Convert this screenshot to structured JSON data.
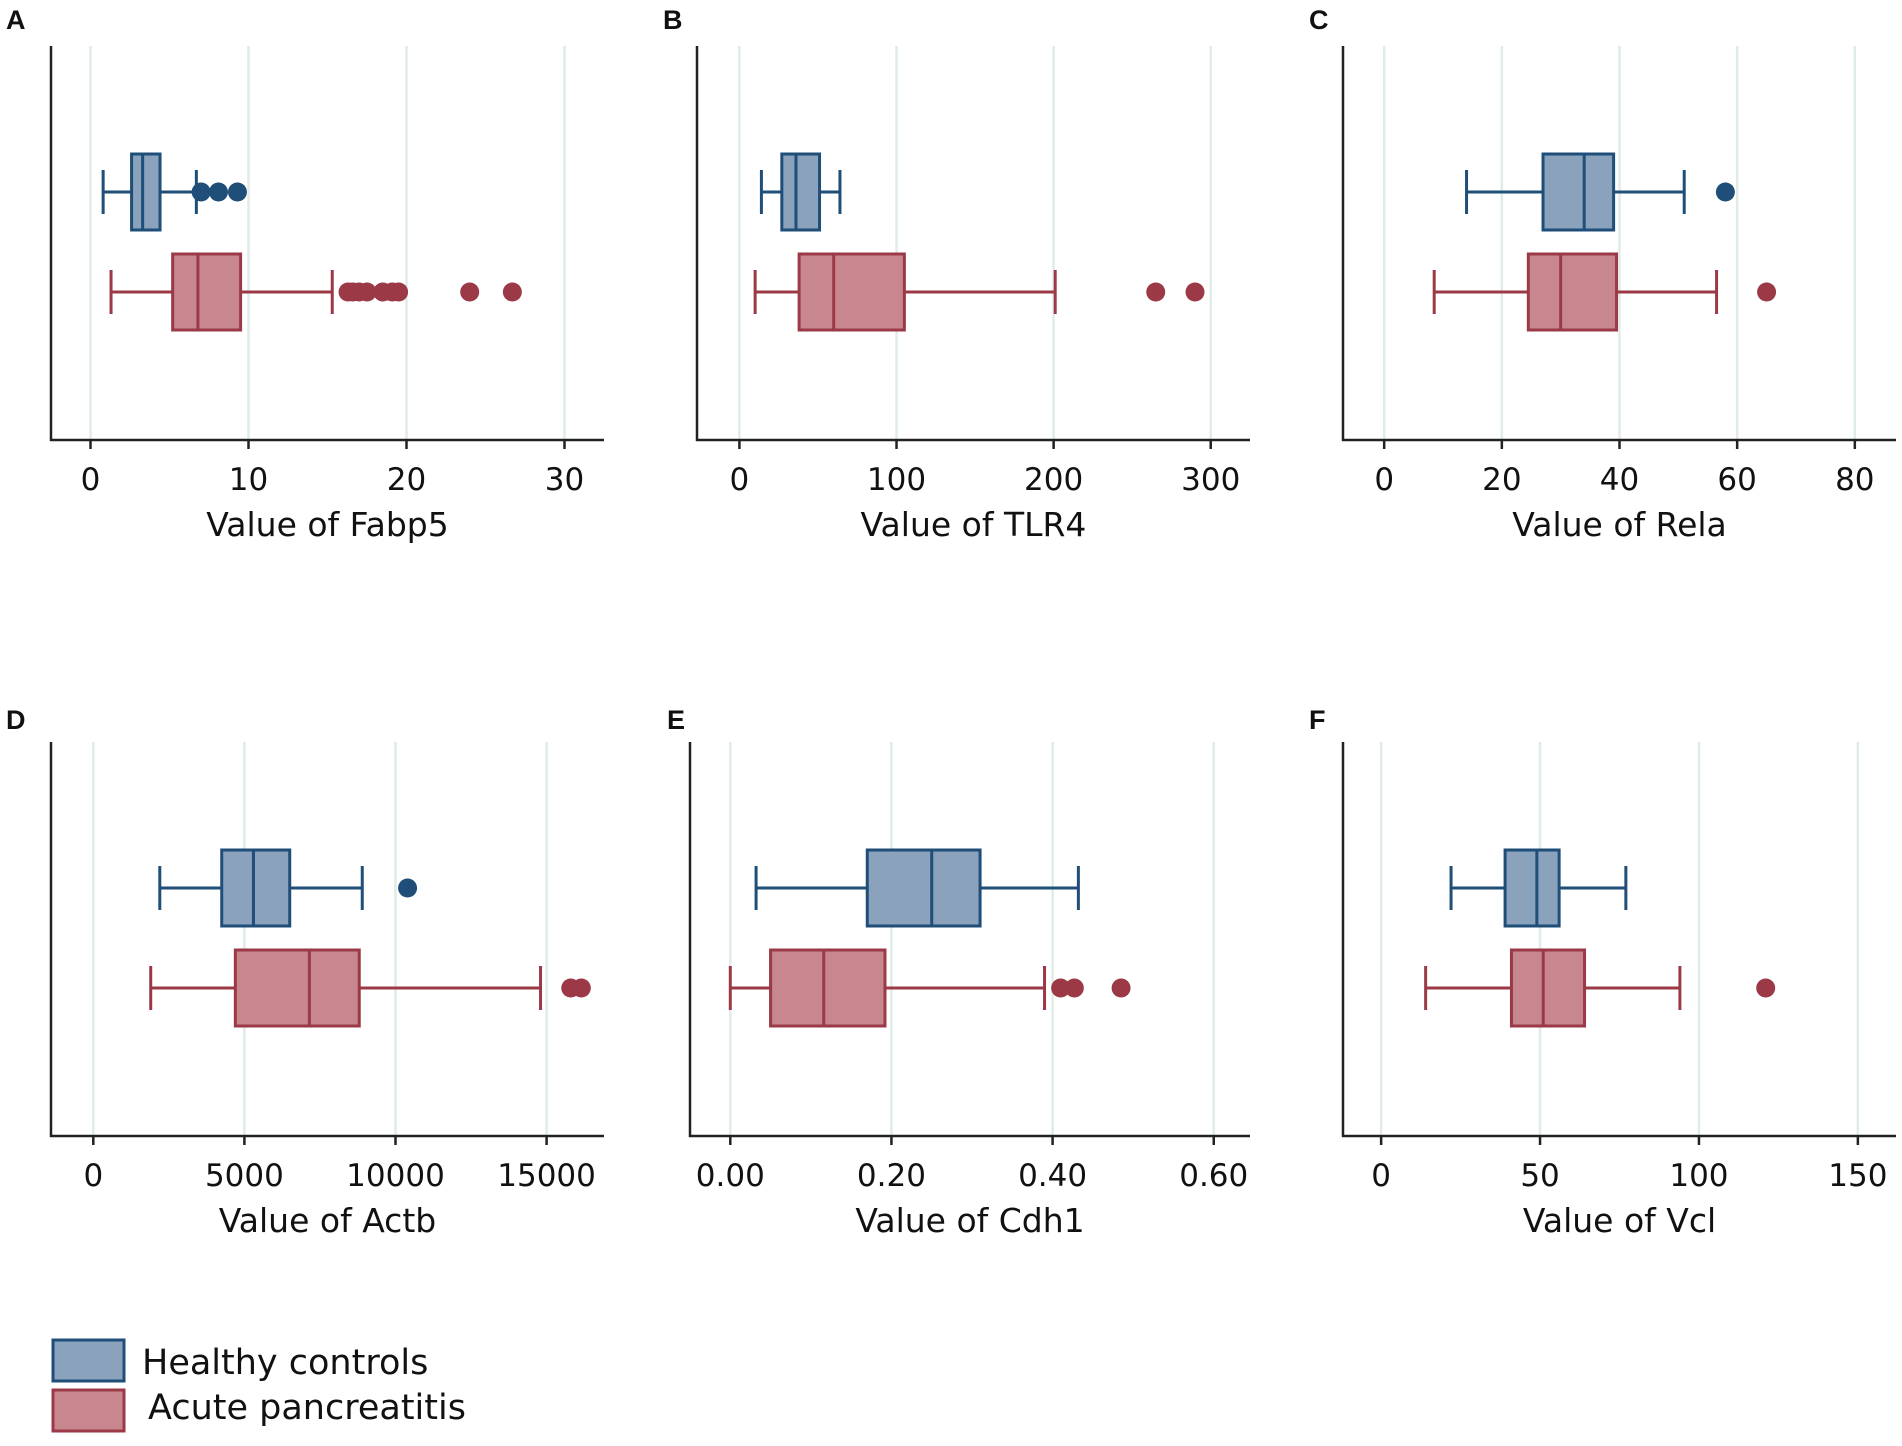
{
  "colors": {
    "healthy_stroke": "#1f4e79",
    "healthy_fill": "#8ba2bc",
    "ap_stroke": "#9b3a46",
    "ap_fill": "#c8878e",
    "grid": "#e1ebe8",
    "axis": "#222222"
  },
  "legend": {
    "items": [
      {
        "label": "Healthy controls",
        "series": "healthy"
      },
      {
        "label": "Acute pancreatitis",
        "series": "ap"
      }
    ]
  },
  "chart_data": [
    {
      "type": "box",
      "panel": "A",
      "xlabel": "Value of Fabp5",
      "xlim": [
        -2.5,
        32.5
      ],
      "ticks": [
        0,
        10,
        20,
        30
      ],
      "tick_labels": [
        "0",
        "10",
        "20",
        "30"
      ],
      "grid": true,
      "series": [
        {
          "name": "Healthy controls",
          "key": "healthy",
          "whisker_low": 0.8,
          "q1": 2.6,
          "median": 3.3,
          "q3": 4.4,
          "whisker_high": 6.7,
          "outliers": [
            7.0,
            8.1,
            9.3
          ]
        },
        {
          "name": "Acute pancreatitis",
          "key": "ap",
          "whisker_low": 1.3,
          "q1": 5.2,
          "median": 6.8,
          "q3": 9.5,
          "whisker_high": 15.3,
          "outliers": [
            16.3,
            16.6,
            17.0,
            17.5,
            18.5,
            19.1,
            19.5,
            24.0,
            26.7
          ]
        }
      ]
    },
    {
      "type": "box",
      "panel": "B",
      "xlabel": "Value of TLR4",
      "xlim": [
        -27,
        325
      ],
      "ticks": [
        0,
        100,
        200,
        300
      ],
      "tick_labels": [
        "0",
        "100",
        "200",
        "300"
      ],
      "grid": true,
      "series": [
        {
          "name": "Healthy controls",
          "key": "healthy",
          "whisker_low": 14,
          "q1": 27,
          "median": 36,
          "q3": 51,
          "whisker_high": 64,
          "outliers": []
        },
        {
          "name": "Acute pancreatitis",
          "key": "ap",
          "whisker_low": 10,
          "q1": 38,
          "median": 60,
          "q3": 105,
          "whisker_high": 201,
          "outliers": [
            265,
            290
          ]
        }
      ]
    },
    {
      "type": "box",
      "panel": "C",
      "xlabel": "Value of Rela",
      "xlim": [
        -7,
        87
      ],
      "ticks": [
        0,
        20,
        40,
        60,
        80
      ],
      "tick_labels": [
        "0",
        "20",
        "40",
        "60",
        "80"
      ],
      "grid": true,
      "series": [
        {
          "name": "Healthy controls",
          "key": "healthy",
          "whisker_low": 14,
          "q1": 27,
          "median": 34,
          "q3": 39,
          "whisker_high": 51,
          "outliers": [
            58
          ]
        },
        {
          "name": "Acute pancreatitis",
          "key": "ap",
          "whisker_low": 8.5,
          "q1": 24.5,
          "median": 30,
          "q3": 39.5,
          "whisker_high": 56.5,
          "outliers": [
            65
          ]
        }
      ]
    },
    {
      "type": "box",
      "panel": "D",
      "xlabel": "Value of Actb",
      "xlim": [
        -1400,
        16900
      ],
      "ticks": [
        0,
        5000,
        10000,
        15000
      ],
      "tick_labels": [
        "0",
        "5000",
        "10000",
        "15000"
      ],
      "grid": true,
      "series": [
        {
          "name": "Healthy controls",
          "key": "healthy",
          "whisker_low": 2200,
          "q1": 4250,
          "median": 5300,
          "q3": 6500,
          "whisker_high": 8900,
          "outliers": [
            10400
          ]
        },
        {
          "name": "Acute pancreatitis",
          "key": "ap",
          "whisker_low": 1900,
          "q1": 4700,
          "median": 7150,
          "q3": 8800,
          "whisker_high": 14800,
          "outliers": [
            15800,
            16150
          ]
        }
      ]
    },
    {
      "type": "box",
      "panel": "E",
      "xlabel": "Value of Cdh1",
      "xlim": [
        -0.05,
        0.645
      ],
      "ticks": [
        0,
        0.2,
        0.4,
        0.6
      ],
      "tick_labels": [
        "0.00",
        "0.20",
        "0.40",
        "0.60"
      ],
      "grid": true,
      "series": [
        {
          "name": "Healthy controls",
          "key": "healthy",
          "whisker_low": 0.032,
          "q1": 0.17,
          "median": 0.25,
          "q3": 0.31,
          "whisker_high": 0.432,
          "outliers": []
        },
        {
          "name": "Acute pancreatitis",
          "key": "ap",
          "whisker_low": 0.0,
          "q1": 0.05,
          "median": 0.116,
          "q3": 0.192,
          "whisker_high": 0.39,
          "outliers": [
            0.41,
            0.427,
            0.485
          ]
        }
      ]
    },
    {
      "type": "box",
      "panel": "F",
      "xlabel": "Value of Vcl",
      "xlim": [
        -12,
        162
      ],
      "ticks": [
        0,
        50,
        100,
        150
      ],
      "tick_labels": [
        "0",
        "50",
        "100",
        "150"
      ],
      "grid": true,
      "series": [
        {
          "name": "Healthy controls",
          "key": "healthy",
          "whisker_low": 22,
          "q1": 39,
          "median": 49,
          "q3": 56,
          "whisker_high": 77,
          "outliers": []
        },
        {
          "name": "Acute pancreatitis",
          "key": "ap",
          "whisker_low": 14,
          "q1": 41,
          "median": 51,
          "q3": 64,
          "whisker_high": 94,
          "outliers": [
            121
          ]
        }
      ]
    }
  ]
}
